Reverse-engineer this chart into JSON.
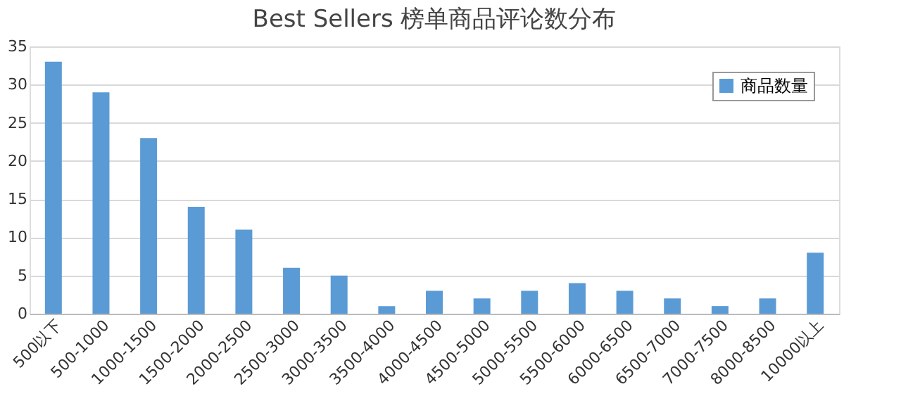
{
  "chart_data": {
    "type": "bar",
    "title": "Best Sellers 榜单商品评论数分布",
    "categories": [
      "500以下",
      "500-1000",
      "1000-1500",
      "1500-2000",
      "2000-2500",
      "2500-3000",
      "3000-3500",
      "3500-4000",
      "4000-4500",
      "4500-5000",
      "5000-5500",
      "5500-6000",
      "6000-6500",
      "6500-7000",
      "7000-7500",
      "8000-8500",
      "10000以上"
    ],
    "series": [
      {
        "name": "商品数量",
        "color": "#5b9bd5",
        "values": [
          33,
          29,
          23,
          14,
          11,
          6,
          5,
          1,
          3,
          2,
          3,
          4,
          3,
          2,
          1,
          2,
          8
        ]
      }
    ],
    "ylim": [
      0,
      35
    ],
    "yticks": [
      0,
      5,
      10,
      15,
      20,
      25,
      30,
      35
    ],
    "grid": "y",
    "legend": "top right"
  }
}
